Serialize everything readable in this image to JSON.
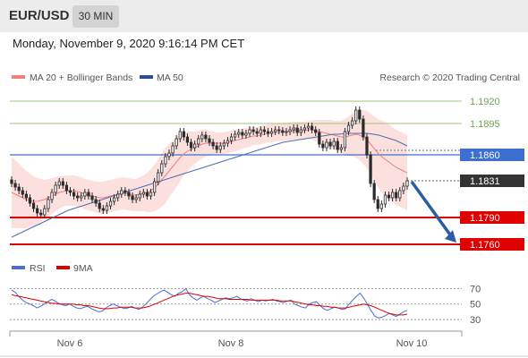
{
  "header": {
    "pair": "EUR/USD",
    "timeframe": "30 MIN"
  },
  "datetime": "Monday, November 9, 2020 9:16:14 PM CET",
  "legend": {
    "ma20": "MA 20 + Bollinger Bands",
    "ma50": "MA 50",
    "source": "Research © 2020 Trading Central"
  },
  "colors": {
    "green": "#6aa84f",
    "blue": "#3d6fd1",
    "red": "#e00000",
    "dark": "#333333",
    "bb_fill": "#fadbd8",
    "ma20": "#f08080",
    "ma50": "#4a6eb5",
    "candle": "#2b2b2b",
    "arrow": "#2a5d9f"
  },
  "chart_data": [
    {
      "type": "line",
      "title": "",
      "x_ticks": [
        "Nov 6",
        "Nov 8",
        "Nov 10"
      ],
      "ylim": [
        1.1745,
        1.1935
      ],
      "levels": [
        {
          "value": 1.192,
          "label": "1.1920",
          "style": "green"
        },
        {
          "value": 1.1895,
          "label": "1.1895",
          "style": "green"
        },
        {
          "value": 1.186,
          "label": "1.1860",
          "style": "blue"
        },
        {
          "value": 1.1831,
          "label": "1.1831",
          "style": "dark"
        },
        {
          "value": 1.179,
          "label": "1.1790",
          "style": "red"
        },
        {
          "value": 1.176,
          "label": "1.1760",
          "style": "red"
        }
      ],
      "series": [
        {
          "name": "MA 20 + Bollinger Bands",
          "type": "band"
        },
        {
          "name": "MA 50",
          "type": "line"
        }
      ],
      "close": [
        1.1828,
        1.1824,
        1.182,
        1.1816,
        1.1812,
        1.1806,
        1.18,
        1.1795,
        1.1793,
        1.18,
        1.181,
        1.1818,
        1.1826,
        1.183,
        1.1826,
        1.182,
        1.1818,
        1.1814,
        1.1812,
        1.1814,
        1.1818,
        1.1814,
        1.181,
        1.1806,
        1.18,
        1.1798,
        1.1803,
        1.1808,
        1.1812,
        1.1816,
        1.182,
        1.1818,
        1.1814,
        1.181,
        1.1812,
        1.1816,
        1.1818,
        1.1814,
        1.1818,
        1.183,
        1.184,
        1.185,
        1.1858,
        1.1862,
        1.187,
        1.1878,
        1.1886,
        1.188,
        1.1874,
        1.1868,
        1.1872,
        1.1878,
        1.1882,
        1.1878,
        1.1874,
        1.187,
        1.1866,
        1.187,
        1.1873,
        1.1876,
        1.188,
        1.1883,
        1.1885,
        1.1882,
        1.1884,
        1.1888,
        1.1886,
        1.1884,
        1.1888,
        1.1886,
        1.1884,
        1.1886,
        1.1888,
        1.1887,
        1.1885,
        1.1886,
        1.1888,
        1.189,
        1.1885,
        1.1888,
        1.189,
        1.1892,
        1.1888,
        1.1885,
        1.1872,
        1.1868,
        1.1874,
        1.187,
        1.1875,
        1.1866,
        1.1868,
        1.1886,
        1.1893,
        1.1898,
        1.191,
        1.19,
        1.188,
        1.186,
        1.1828,
        1.181,
        1.18,
        1.1805,
        1.1815,
        1.1812,
        1.1818,
        1.1812,
        1.182,
        1.1825,
        1.1831
      ],
      "ma50": [
        1.1768,
        1.1771,
        1.1774,
        1.1777,
        1.178,
        1.1783,
        1.1786,
        1.1789,
        1.1792,
        1.1795,
        1.1798,
        1.18,
        1.1802,
        1.1804,
        1.1806,
        1.1808,
        1.181,
        1.1812,
        1.1814,
        1.1816,
        1.1818,
        1.182,
        1.1822,
        1.1824,
        1.1826,
        1.1828,
        1.183,
        1.1832,
        1.1834,
        1.1836,
        1.1838,
        1.184,
        1.1842,
        1.1844,
        1.1846,
        1.1848,
        1.185,
        1.1852,
        1.1854,
        1.1856,
        1.1858,
        1.186,
        1.1862,
        1.1864,
        1.1866,
        1.1868,
        1.187,
        1.1872,
        1.1874,
        1.1875,
        1.1876,
        1.1877,
        1.1878,
        1.1879,
        1.188,
        1.1881,
        1.1882,
        1.1883,
        1.1883,
        1.1884,
        1.1884,
        1.1884,
        1.1884,
        1.1884,
        1.1883,
        1.1882,
        1.188,
        1.1878,
        1.1876,
        1.1873,
        1.187
      ],
      "ma20": [
        1.1818,
        1.1816,
        1.1814,
        1.1812,
        1.181,
        1.1809,
        1.1808,
        1.1808,
        1.1809,
        1.181,
        1.1812,
        1.1814,
        1.1816,
        1.1818,
        1.1819,
        1.182,
        1.182,
        1.182,
        1.1819,
        1.1818,
        1.1816,
        1.1815,
        1.1814,
        1.1813,
        1.1812,
        1.1812,
        1.1813,
        1.1814,
        1.1815,
        1.1816,
        1.1817,
        1.1817,
        1.1816,
        1.1815,
        1.1815,
        1.1816,
        1.1817,
        1.1818,
        1.182,
        1.1823,
        1.1827,
        1.1832,
        1.1837,
        1.1842,
        1.1847,
        1.1852,
        1.1857,
        1.1861,
        1.1864,
        1.1866,
        1.1868,
        1.187,
        1.1872,
        1.1873,
        1.1873,
        1.1873,
        1.1873,
        1.1873,
        1.1873,
        1.1874,
        1.1875,
        1.1876,
        1.1877,
        1.1878,
        1.1879,
        1.188,
        1.1881,
        1.1881,
        1.1882,
        1.1883,
        1.1884,
        1.1884,
        1.1885,
        1.1885,
        1.1886,
        1.1886,
        1.1886,
        1.1887,
        1.1887,
        1.1887,
        1.1887,
        1.1888,
        1.1888,
        1.1887,
        1.1886,
        1.1885,
        1.1884,
        1.1883,
        1.1882,
        1.1881,
        1.188,
        1.188,
        1.1881,
        1.1882,
        1.1883,
        1.1882,
        1.188,
        1.1877,
        1.1872,
        1.1867,
        1.1862,
        1.1858,
        1.1855,
        1.1852,
        1.1849,
        1.1846,
        1.1844,
        1.1842,
        1.184
      ],
      "bb_width": [
        0.004,
        0.0038,
        0.0036,
        0.0034,
        0.0032,
        0.003,
        0.0028,
        0.0026,
        0.0024,
        0.0022,
        0.0021,
        0.002,
        0.0019,
        0.0018,
        0.0017,
        0.0017,
        0.0017,
        0.0017,
        0.0017,
        0.0017,
        0.0017,
        0.0017,
        0.0017,
        0.0017,
        0.0018,
        0.0018,
        0.0018,
        0.0018,
        0.0018,
        0.0018,
        0.0018,
        0.0018,
        0.0018,
        0.0018,
        0.0018,
        0.0019,
        0.002,
        0.0022,
        0.0024,
        0.0026,
        0.0028,
        0.003,
        0.0031,
        0.003,
        0.0029,
        0.0028,
        0.0026,
        0.0024,
        0.0022,
        0.002,
        0.0018,
        0.0017,
        0.0016,
        0.0015,
        0.0014,
        0.0013,
        0.0012,
        0.0012,
        0.0012,
        0.0012,
        0.0012,
        0.0012,
        0.0012,
        0.0011,
        0.0011,
        0.0011,
        0.001,
        0.001,
        0.001,
        0.001,
        0.001,
        0.001,
        0.001,
        0.001,
        0.001,
        0.001,
        0.001,
        0.001,
        0.001,
        0.001,
        0.001,
        0.001,
        0.0011,
        0.0012,
        0.0013,
        0.0014,
        0.0015,
        0.0016,
        0.0016,
        0.0017,
        0.0018,
        0.002,
        0.0022,
        0.0024,
        0.0026,
        0.0028,
        0.003,
        0.0032,
        0.0034,
        0.0036,
        0.0038,
        0.004,
        0.0042,
        0.0042,
        0.0042,
        0.0042,
        0.0042,
        0.0042,
        0.0042
      ]
    },
    {
      "type": "line",
      "title": "",
      "ylim": [
        22,
        82
      ],
      "y_ticks": [
        "70",
        "50",
        "30"
      ],
      "series": [
        {
          "name": "RSI",
          "values": [
            68,
            65,
            60,
            55,
            52,
            50,
            48,
            45,
            47,
            50,
            53,
            56,
            54,
            51,
            49,
            48,
            50,
            47,
            45,
            44,
            46,
            47,
            44,
            42,
            40,
            41,
            45,
            48,
            50,
            48,
            46,
            44,
            45,
            47,
            45,
            43,
            46,
            50,
            55,
            60,
            63,
            66,
            68,
            65,
            62,
            60,
            64,
            66,
            70,
            62,
            58,
            55,
            58,
            60,
            57,
            55,
            52,
            54,
            56,
            58,
            57,
            58,
            60,
            57,
            55,
            54,
            57,
            55,
            53,
            55,
            54,
            55,
            56,
            54,
            53,
            52,
            54,
            55,
            50,
            48,
            46,
            45,
            50,
            52,
            53,
            48,
            44,
            42,
            44,
            46,
            45,
            43,
            44,
            50,
            55,
            60,
            64,
            58,
            50,
            42,
            35,
            32,
            33,
            35,
            38,
            36,
            34,
            37,
            40,
            42
          ]
        },
        {
          "name": "9MA",
          "values": [
            62,
            61,
            60,
            59,
            58,
            57,
            56,
            55,
            54,
            53,
            52,
            51,
            51,
            50,
            50,
            50,
            50,
            50,
            49,
            49,
            48,
            48,
            47,
            46,
            45,
            44,
            44,
            44,
            45,
            45,
            46,
            46,
            46,
            46,
            45,
            45,
            45,
            46,
            47,
            49,
            51,
            53,
            55,
            57,
            59,
            61,
            62,
            63,
            64,
            64,
            63,
            62,
            61,
            60,
            60,
            59,
            58,
            57,
            57,
            57,
            56,
            56,
            56,
            56,
            56,
            56,
            55,
            55,
            55,
            55,
            55,
            55,
            55,
            55,
            54,
            54,
            54,
            54,
            53,
            52,
            51,
            50,
            49,
            49,
            48,
            48,
            47,
            47,
            46,
            46,
            45,
            45,
            45,
            46,
            47,
            48,
            49,
            50,
            49,
            48,
            46,
            44,
            42,
            40,
            38,
            37,
            36,
            36,
            36,
            37
          ]
        }
      ]
    }
  ]
}
